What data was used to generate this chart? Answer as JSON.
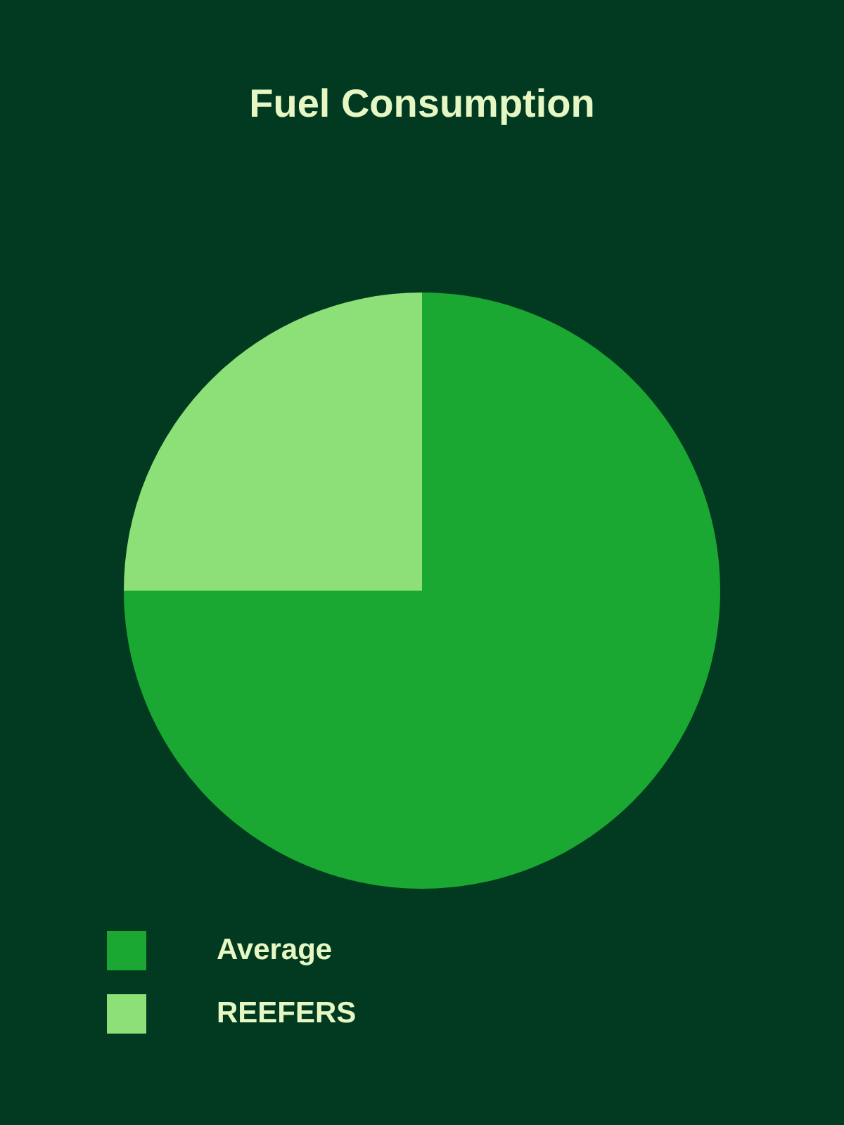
{
  "chart_data": {
    "type": "pie",
    "title": "Fuel Consumption",
    "categories": [
      "Average",
      "REEFERS"
    ],
    "values": [
      75,
      25
    ],
    "colors": [
      "#1aa832",
      "#8ce077"
    ],
    "legend": "bottom"
  }
}
